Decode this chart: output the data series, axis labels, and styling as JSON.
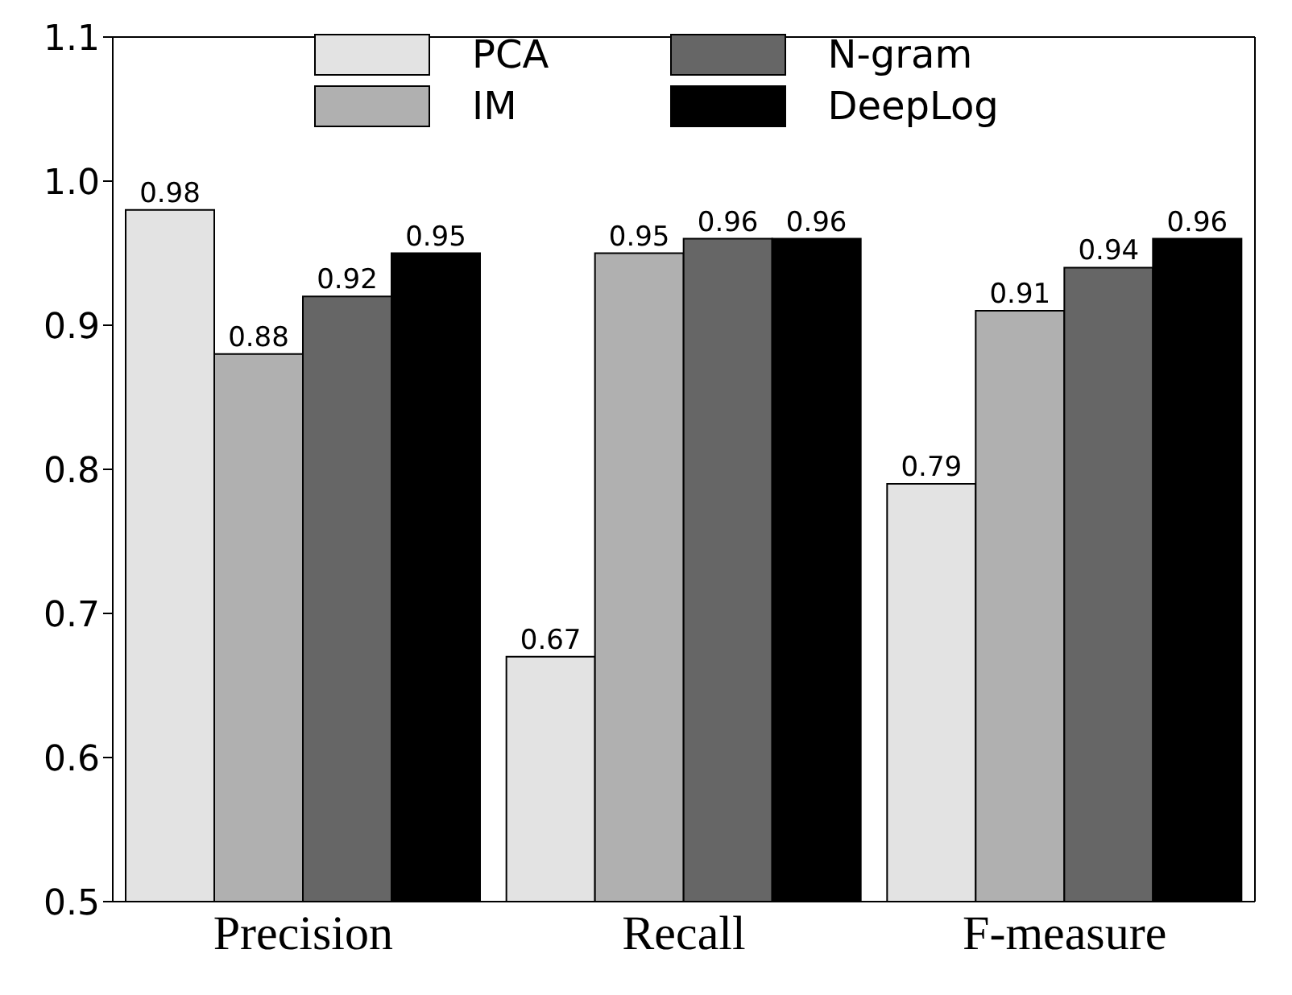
{
  "chart_data": {
    "type": "bar",
    "categories": [
      "Precision",
      "Recall",
      "F-measure"
    ],
    "series": [
      {
        "name": "PCA",
        "color": "#e3e3e3",
        "values": [
          0.98,
          0.67,
          0.79
        ]
      },
      {
        "name": "IM",
        "color": "#b0b0b0",
        "values": [
          0.88,
          0.95,
          0.91
        ]
      },
      {
        "name": "N-gram",
        "color": "#666666",
        "values": [
          0.92,
          0.96,
          0.94
        ]
      },
      {
        "name": "DeepLog",
        "color": "#000000",
        "values": [
          0.95,
          0.96,
          0.96
        ]
      }
    ],
    "ylim": [
      0.5,
      1.1
    ],
    "yticks": [
      0.5,
      0.6,
      0.7,
      0.8,
      0.9,
      {
        "value": 1,
        "label": "1.0"
      },
      1.1
    ],
    "grid": false,
    "legend": "top",
    "data_labels": true
  }
}
